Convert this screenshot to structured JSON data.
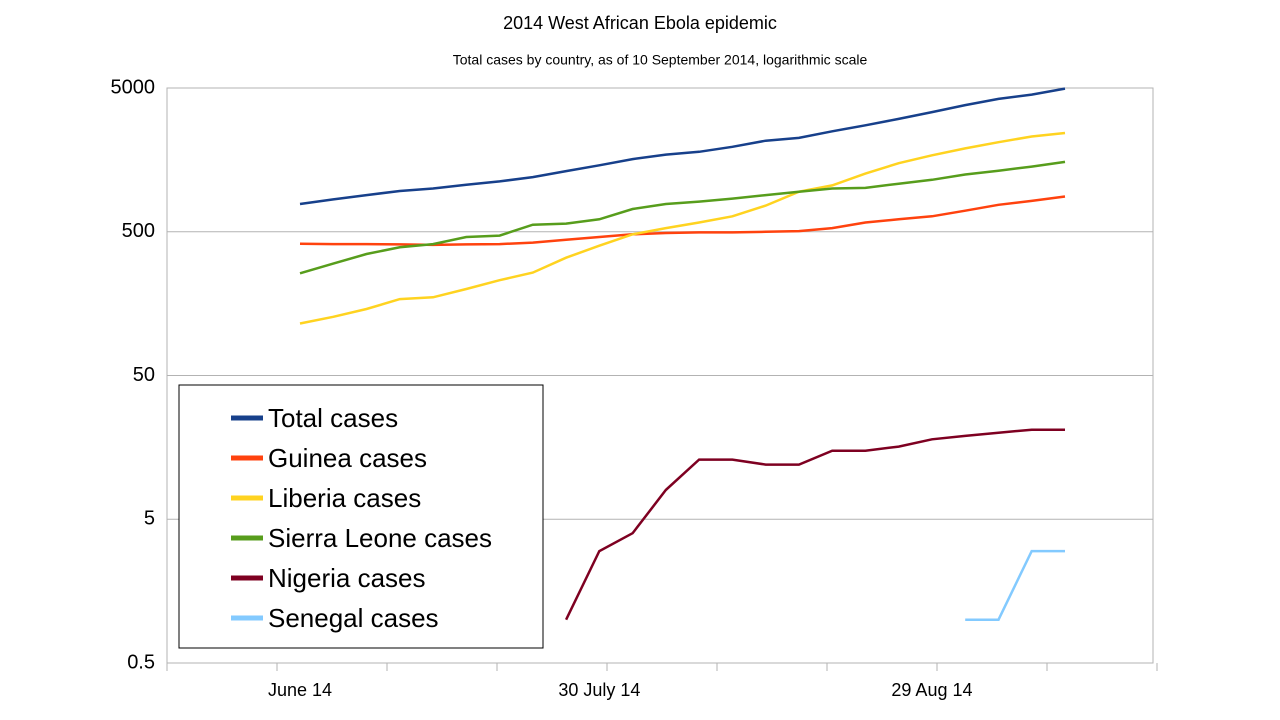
{
  "chart_data": {
    "type": "line",
    "title": "2014 West African Ebola epidemic",
    "subtitle": "Total cases by country, as of 10 September 2014, logarithmic scale",
    "categories": [
      "June 14",
      null,
      null,
      null,
      null,
      null,
      null,
      null,
      null,
      "30 July 14",
      null,
      null,
      null,
      null,
      null,
      null,
      null,
      null,
      null,
      "29 Aug 14",
      null,
      null,
      null,
      null
    ],
    "series": [
      {
        "name": "Total cases",
        "color": "#17408b",
        "values": [
          780,
          840,
          900,
          960,
          1000,
          1060,
          1120,
          1200,
          1320,
          1450,
          1600,
          1720,
          1800,
          1950,
          2150,
          2250,
          2500,
          2750,
          3050,
          3400,
          3800,
          4200,
          4500,
          4950
        ]
      },
      {
        "name": "Guinea cases",
        "color": "#ff420e",
        "values": [
          413,
          410,
          410,
          408,
          405,
          408,
          410,
          420,
          440,
          460,
          480,
          490,
          495,
          495,
          500,
          505,
          530,
          580,
          610,
          640,
          700,
          770,
          820,
          880
        ]
      },
      {
        "name": "Liberia cases",
        "color": "#ffd320",
        "values": [
          115,
          128,
          145,
          170,
          175,
          200,
          230,
          260,
          330,
          400,
          480,
          530,
          580,
          640,
          760,
          950,
          1050,
          1270,
          1500,
          1700,
          1900,
          2100,
          2300,
          2430
        ]
      },
      {
        "name": "Sierra Leone cases",
        "color": "#579d1c",
        "values": [
          257,
          300,
          350,
          390,
          410,
          460,
          470,
          560,
          570,
          610,
          720,
          780,
          810,
          850,
          900,
          950,
          1000,
          1010,
          1080,
          1150,
          1250,
          1330,
          1420,
          1530
        ]
      },
      {
        "name": "Nigeria cases",
        "color": "#7e0021",
        "values": [
          null,
          null,
          null,
          null,
          null,
          null,
          null,
          null,
          1,
          3,
          4,
          8,
          13,
          13,
          12,
          12,
          15,
          15,
          16,
          18,
          19,
          20,
          21,
          21
        ]
      },
      {
        "name": "Senegal cases",
        "color": "#83caff",
        "values": [
          null,
          null,
          null,
          null,
          null,
          null,
          null,
          null,
          null,
          null,
          null,
          null,
          null,
          null,
          null,
          null,
          null,
          null,
          null,
          null,
          1,
          1,
          3,
          3
        ]
      }
    ],
    "log_scale": true,
    "ylim": [
      0.5,
      5000
    ],
    "yticks": [
      0.5,
      5,
      50,
      500,
      5000
    ],
    "grid": true,
    "legend": "lower left"
  }
}
